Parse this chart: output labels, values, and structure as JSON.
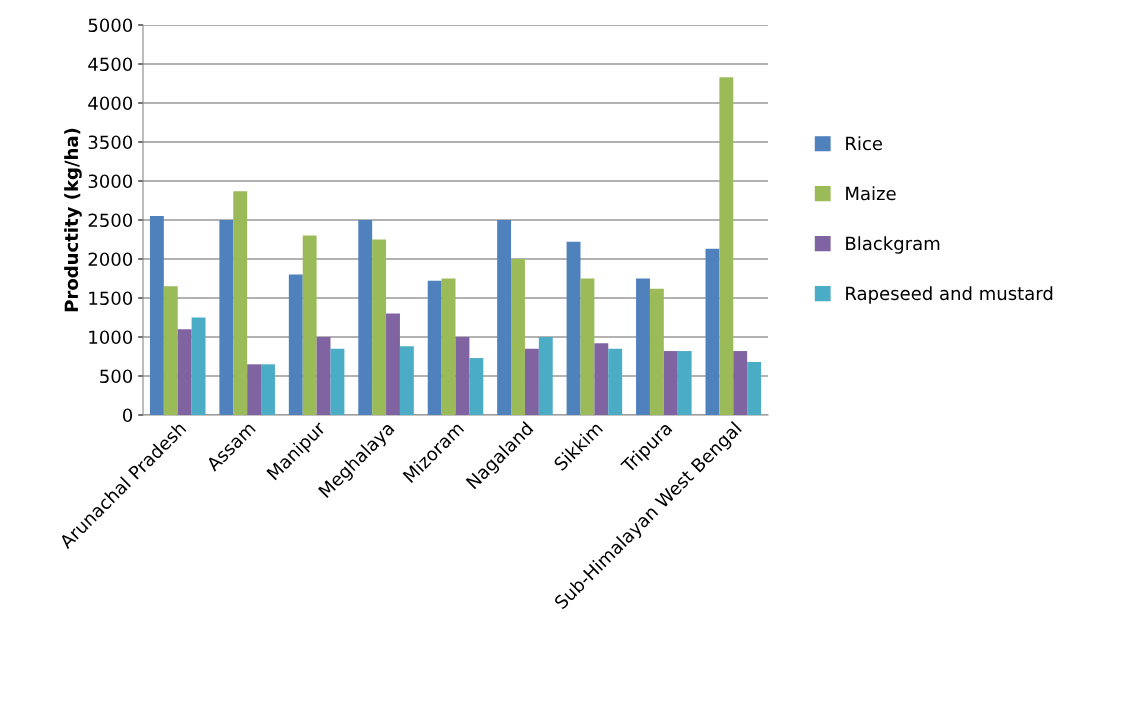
{
  "chart_data": {
    "type": "bar",
    "ylabel": "Productity (kg/ha)",
    "categories": [
      "Arunachal Pradesh",
      "Assam",
      "Manipur",
      "Meghalaya",
      "Mizoram",
      "Nagaland",
      "Sikkim",
      "Tripura",
      "Sub-Himalayan West Bengal"
    ],
    "series": [
      {
        "name": "Rice",
        "color": "#4f81bd",
        "values": [
          2550,
          2500,
          1800,
          2500,
          1720,
          2500,
          2220,
          1750,
          2130
        ]
      },
      {
        "name": "Maize",
        "color": "#9bbb59",
        "values": [
          1650,
          2870,
          2300,
          2250,
          1750,
          2000,
          1750,
          1620,
          4330
        ]
      },
      {
        "name": "Blackgram",
        "color": "#8064a2",
        "values": [
          1100,
          650,
          1000,
          1300,
          1000,
          850,
          920,
          820,
          820
        ]
      },
      {
        "name": "Rapeseed and mustard",
        "color": "#4bacc6",
        "values": [
          1250,
          650,
          850,
          880,
          730,
          1000,
          850,
          820,
          680
        ]
      }
    ],
    "ylim": [
      0,
      5000
    ],
    "yticks": [
      0,
      500,
      1000,
      1500,
      2000,
      2500,
      3000,
      3500,
      4000,
      4500,
      5000
    ],
    "grid": "y",
    "legend": "right"
  }
}
